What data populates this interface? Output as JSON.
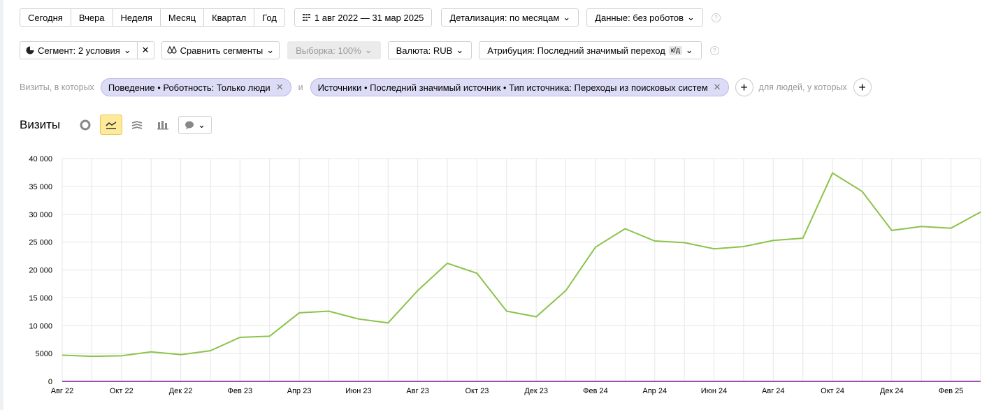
{
  "toolbar": {
    "periods": [
      "Сегодня",
      "Вчера",
      "Неделя",
      "Месяц",
      "Квартал",
      "Год"
    ],
    "date_range": "1 авг 2022 — 31 мар 2025",
    "detail": "Детализация: по месяцам",
    "data_filter": "Данные: без роботов"
  },
  "segment_bar": {
    "segment": "Сегмент: 2 условия",
    "compare": "Сравнить сегменты",
    "sample": "Выборка: 100%",
    "currency": "Валюта: RUB",
    "attribution": "Атрибуция: Последний значимый переход",
    "attribution_badge": "к/д"
  },
  "filters": {
    "prefix": "Визиты, в которых",
    "conditions": [
      "Поведение • Роботность: Только люди",
      "Источники • Последний значимый источник • Тип источника: Переходы из поисковых систем"
    ],
    "joiner": "и",
    "people_prefix": "для людей, у которых"
  },
  "chart_data": {
    "type": "line",
    "title": "Визиты",
    "categories": [
      "Авг 22",
      null,
      "Окт 22",
      null,
      "Дек 22",
      null,
      "Фев 23",
      null,
      "Апр 23",
      null,
      "Июн 23",
      null,
      "Авг 23",
      null,
      "Окт 23",
      null,
      "Дек 23",
      null,
      "Фев 24",
      null,
      "Апр 24",
      null,
      "Июн 24",
      null,
      "Авг 24",
      null,
      "Окт 24",
      null,
      "Дек 24",
      null,
      "Фев 25",
      null
    ],
    "series": [
      {
        "color": "#8bc34a",
        "values": [
          4700,
          4500,
          4600,
          5300,
          4800,
          5500,
          7900,
          8100,
          12300,
          12600,
          11200,
          10500,
          16300,
          21200,
          19400,
          12600,
          11600,
          16300,
          24100,
          27400,
          25200,
          24900,
          23800,
          24200,
          25300,
          25700,
          37400,
          34100,
          27100,
          27800,
          27500,
          30400
        ]
      },
      {
        "color": "#9c4fb0",
        "values": [
          0,
          0,
          0,
          0,
          0,
          0,
          0,
          0,
          0,
          0,
          0,
          0,
          0,
          0,
          0,
          0,
          0,
          0,
          0,
          0,
          0,
          0,
          0,
          0,
          0,
          0,
          0,
          0,
          0,
          0,
          0,
          0
        ]
      }
    ],
    "ylim": [
      0,
      40000
    ],
    "yticks": [
      0,
      {
        "value": 5000,
        "label": "5000"
      },
      {
        "value": 10000,
        "label": "10 000"
      },
      {
        "value": 15000,
        "label": "15 000"
      },
      {
        "value": 20000,
        "label": "20 000"
      },
      {
        "value": 25000,
        "label": "25 000"
      },
      {
        "value": 30000,
        "label": "30 000"
      },
      {
        "value": 35000,
        "label": "35 000"
      },
      {
        "value": 40000,
        "label": "40 000"
      }
    ],
    "grid": true
  }
}
